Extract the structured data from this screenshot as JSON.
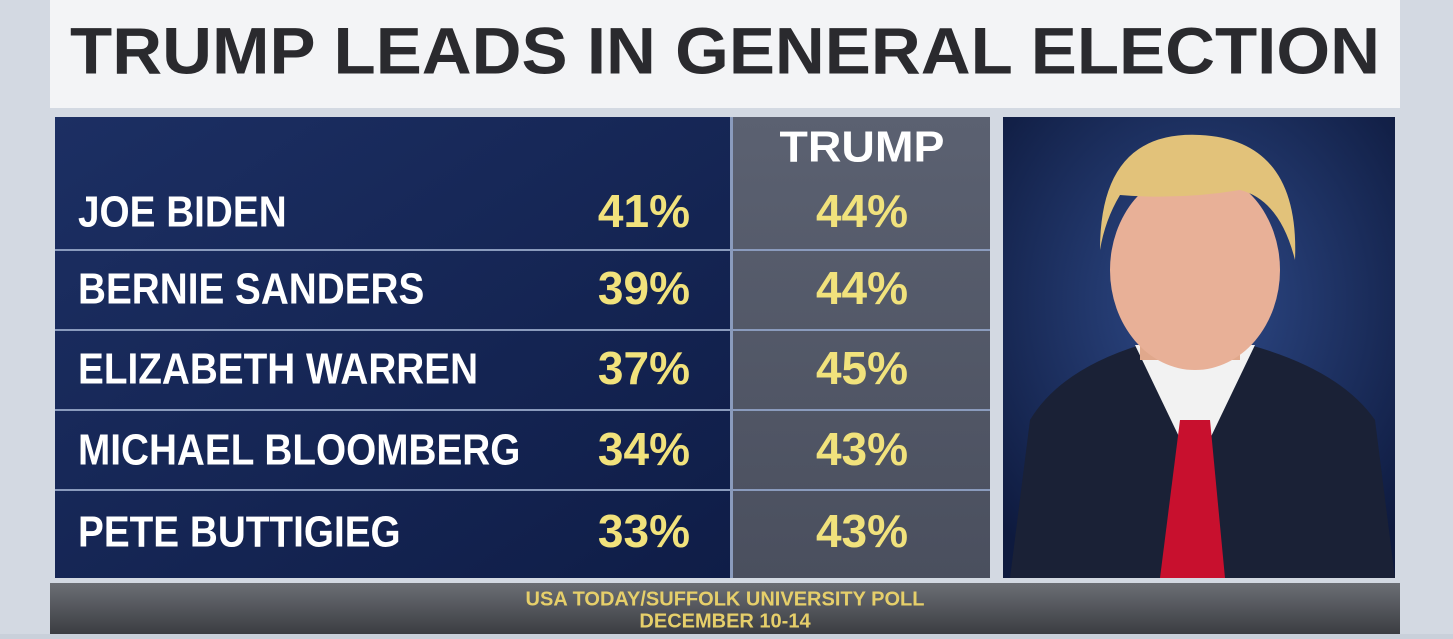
{
  "header": {
    "title": "TRUMP LEADS IN GENERAL ELECTION"
  },
  "table": {
    "column_header": "TRUMP",
    "rows": [
      [
        "JOE BIDEN",
        "41%",
        "44%"
      ],
      [
        "BERNIE SANDERS",
        "39%",
        "44%"
      ],
      [
        "ELIZABETH WARREN",
        "37%",
        "45%"
      ],
      [
        "MICHAEL BLOOMBERG",
        "34%",
        "43%"
      ],
      [
        "PETE BUTTIGIEG",
        "33%",
        "43%"
      ]
    ]
  },
  "footer": {
    "source": "USA TODAY/SUFFOLK UNIVERSITY POLL",
    "date": "DECEMBER 10-14"
  }
}
